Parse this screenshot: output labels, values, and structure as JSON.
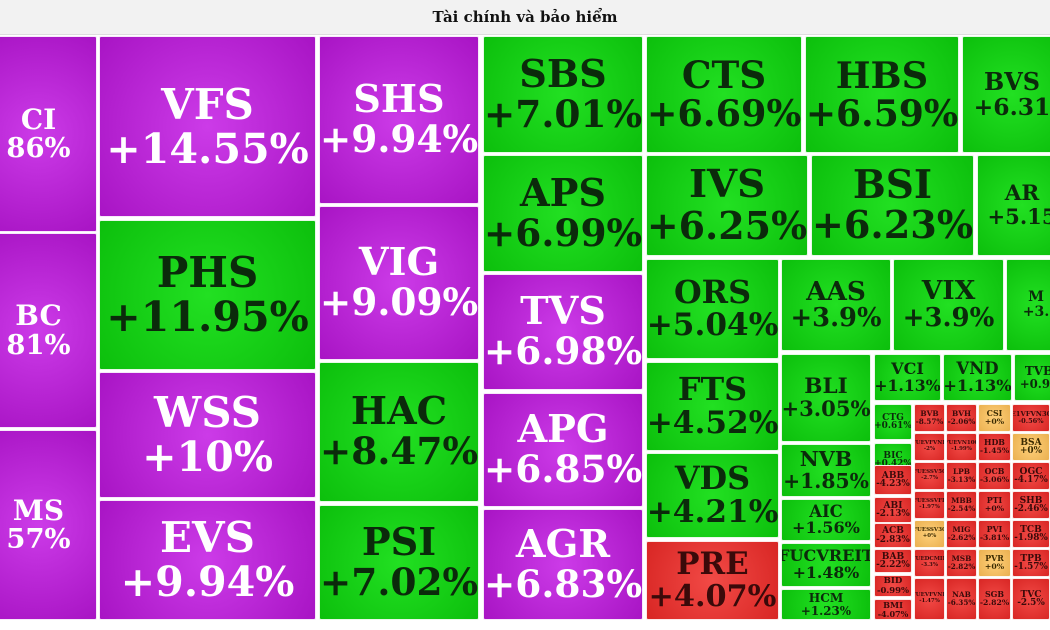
{
  "header": {
    "title": "Tài chính và bảo hiểm"
  },
  "colors": {
    "ceiling": "#b21bd4",
    "up": "#10c810",
    "down": "#e8302e",
    "flat": "#f0b84c"
  },
  "chart_data": {
    "type": "treemap",
    "title": "Tài chính và bảo hiểm",
    "cells": [
      {
        "label": "CI",
        "change": "86%",
        "status": "ceiling"
      },
      {
        "label": "BC",
        "change": "81%",
        "status": "ceiling"
      },
      {
        "label": "MS",
        "change": "57%",
        "status": "ceiling"
      },
      {
        "label": "VFS",
        "change": "+14.55%",
        "status": "ceiling"
      },
      {
        "label": "PHS",
        "change": "+11.95%",
        "status": "up"
      },
      {
        "label": "WSS",
        "change": "+10%",
        "status": "ceiling"
      },
      {
        "label": "EVS",
        "change": "+9.94%",
        "status": "ceiling"
      },
      {
        "label": "SHS",
        "change": "+9.94%",
        "status": "ceiling"
      },
      {
        "label": "VIG",
        "change": "+9.09%",
        "status": "ceiling"
      },
      {
        "label": "HAC",
        "change": "+8.47%",
        "status": "up"
      },
      {
        "label": "PSI",
        "change": "+7.02%",
        "status": "up"
      },
      {
        "label": "SBS",
        "change": "+7.01%",
        "status": "up"
      },
      {
        "label": "APS",
        "change": "+6.99%",
        "status": "up"
      },
      {
        "label": "TVS",
        "change": "+6.98%",
        "status": "ceiling"
      },
      {
        "label": "APG",
        "change": "+6.85%",
        "status": "ceiling"
      },
      {
        "label": "AGR",
        "change": "+6.83%",
        "status": "ceiling"
      },
      {
        "label": "CTS",
        "change": "+6.69%",
        "status": "up"
      },
      {
        "label": "HBS",
        "change": "+6.59%",
        "status": "up"
      },
      {
        "label": "BVS",
        "change": "+6.31",
        "status": "up"
      },
      {
        "label": "IVS",
        "change": "+6.25%",
        "status": "up"
      },
      {
        "label": "BSI",
        "change": "+6.23%",
        "status": "up"
      },
      {
        "label": "AR",
        "change": "+5.15",
        "status": "up"
      },
      {
        "label": "ORS",
        "change": "+5.04%",
        "status": "up"
      },
      {
        "label": "AAS",
        "change": "+3.9%",
        "status": "up"
      },
      {
        "label": "VIX",
        "change": "+3.9%",
        "status": "up"
      },
      {
        "label": "M",
        "change": "+3.",
        "status": "up"
      },
      {
        "label": "FTS",
        "change": "+4.52%",
        "status": "up"
      },
      {
        "label": "VDS",
        "change": "+4.21%",
        "status": "up"
      },
      {
        "label": "PRE",
        "change": "+4.07%",
        "status": "down"
      },
      {
        "label": "BLI",
        "change": "+3.05%",
        "status": "up"
      },
      {
        "label": "NVB",
        "change": "+1.85%",
        "status": "up"
      },
      {
        "label": "AIC",
        "change": "+1.56%",
        "status": "up"
      },
      {
        "label": "FUCVREIT",
        "change": "+1.48%",
        "status": "up"
      },
      {
        "label": "HCM",
        "change": "+1.23%",
        "status": "up"
      },
      {
        "label": "VCI",
        "change": "+1.13%",
        "status": "up"
      },
      {
        "label": "VND",
        "change": "+1.13%",
        "status": "up"
      },
      {
        "label": "TVB",
        "change": "+0.92",
        "status": "up"
      },
      {
        "label": "CTG",
        "change": "+0.61%",
        "status": "up"
      },
      {
        "label": "BIC",
        "change": "+0.42%",
        "status": "up"
      },
      {
        "label": "BVB",
        "change": "-8.57%",
        "status": "down"
      },
      {
        "label": "BVH",
        "change": "-2.06%",
        "status": "down"
      },
      {
        "label": "CSI",
        "change": "+0%",
        "status": "flat"
      },
      {
        "label": "E1VFVN30",
        "change": "-0.56%",
        "status": "down"
      },
      {
        "label": "FUEVFVND",
        "change": "-2%",
        "status": "down"
      },
      {
        "label": "FUEVN100",
        "change": "-1.99%",
        "status": "down"
      },
      {
        "label": "HDB",
        "change": "-1.45%",
        "status": "down"
      },
      {
        "label": "BSA",
        "change": "+0%",
        "status": "flat"
      },
      {
        "label": "ABB",
        "change": "-4.23%",
        "status": "down"
      },
      {
        "label": "FUESSV50",
        "change": "-2.7%",
        "status": "down"
      },
      {
        "label": "LPB",
        "change": "-3.13%",
        "status": "down"
      },
      {
        "label": "OCB",
        "change": "-3.06%",
        "status": "down"
      },
      {
        "label": "OGC",
        "change": "-4.17%",
        "status": "down"
      },
      {
        "label": "ABI",
        "change": "-2.13%",
        "status": "down"
      },
      {
        "label": "FUESSVFL",
        "change": "-1.97%",
        "status": "down"
      },
      {
        "label": "MBB",
        "change": "-2.54%",
        "status": "down"
      },
      {
        "label": "PTI",
        "change": "+0%",
        "status": "down"
      },
      {
        "label": "SHB",
        "change": "-2.46%",
        "status": "down"
      },
      {
        "label": "ACB",
        "change": "-2.83%",
        "status": "down"
      },
      {
        "label": "FUESSV30",
        "change": "+0%",
        "status": "flat"
      },
      {
        "label": "MIG",
        "change": "-2.62%",
        "status": "down"
      },
      {
        "label": "PVI",
        "change": "-3.81%",
        "status": "down"
      },
      {
        "label": "TCB",
        "change": "-1.98%",
        "status": "down"
      },
      {
        "label": "BAB",
        "change": "-2.22%",
        "status": "down"
      },
      {
        "label": "FUEDCMID",
        "change": "-3.3%",
        "status": "down"
      },
      {
        "label": "MSB",
        "change": "-2.82%",
        "status": "down"
      },
      {
        "label": "PVR",
        "change": "+0%",
        "status": "flat"
      },
      {
        "label": "TPB",
        "change": "-1.57%",
        "status": "down"
      },
      {
        "label": "BID",
        "change": "-0.99%",
        "status": "down"
      },
      {
        "label": "BMI",
        "change": "-4.07%",
        "status": "down"
      },
      {
        "label": "FUEVFVND",
        "change": "-1.47%",
        "status": "down"
      },
      {
        "label": "NAB",
        "change": "-6.35%",
        "status": "down"
      },
      {
        "label": "SGB",
        "change": "-2.82%",
        "status": "down"
      },
      {
        "label": "TVC",
        "change": "-2.5%",
        "status": "down"
      }
    ]
  }
}
